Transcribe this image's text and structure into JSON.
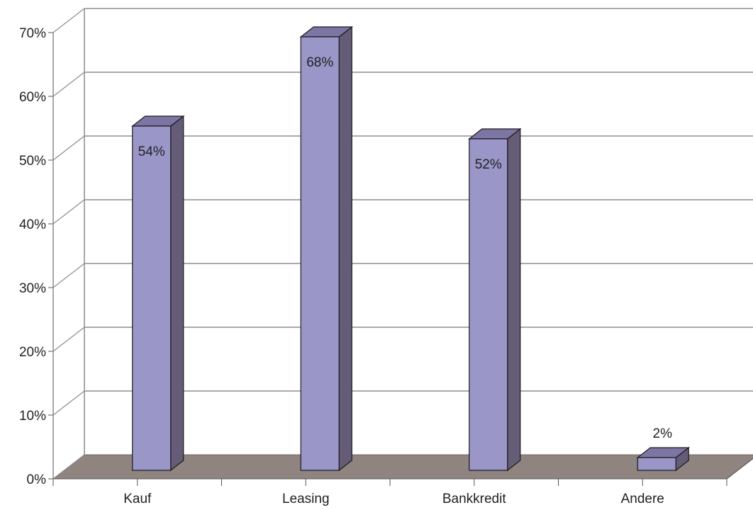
{
  "chart_data": {
    "type": "bar",
    "style": "3d-column",
    "categories": [
      "Kauf",
      "Leasing",
      "Bankkredit",
      "Andere"
    ],
    "values": [
      54,
      68,
      52,
      2
    ],
    "data_labels": [
      "54%",
      "68%",
      "52%",
      "2%"
    ],
    "y_tick_labels": [
      "0%",
      "10%",
      "20%",
      "30%",
      "40%",
      "50%",
      "60%",
      "70%"
    ],
    "ylim": [
      0,
      70
    ],
    "grid": true,
    "legend": "none",
    "title": "",
    "xlabel": "",
    "ylabel": ""
  },
  "colors": {
    "bar_front": "#9a96c8",
    "bar_side": "#655c78",
    "bar_top": "#7d76a4",
    "floor": "#8f847f",
    "gridline": "#555555",
    "wall_edge": "#8c8c8c"
  }
}
